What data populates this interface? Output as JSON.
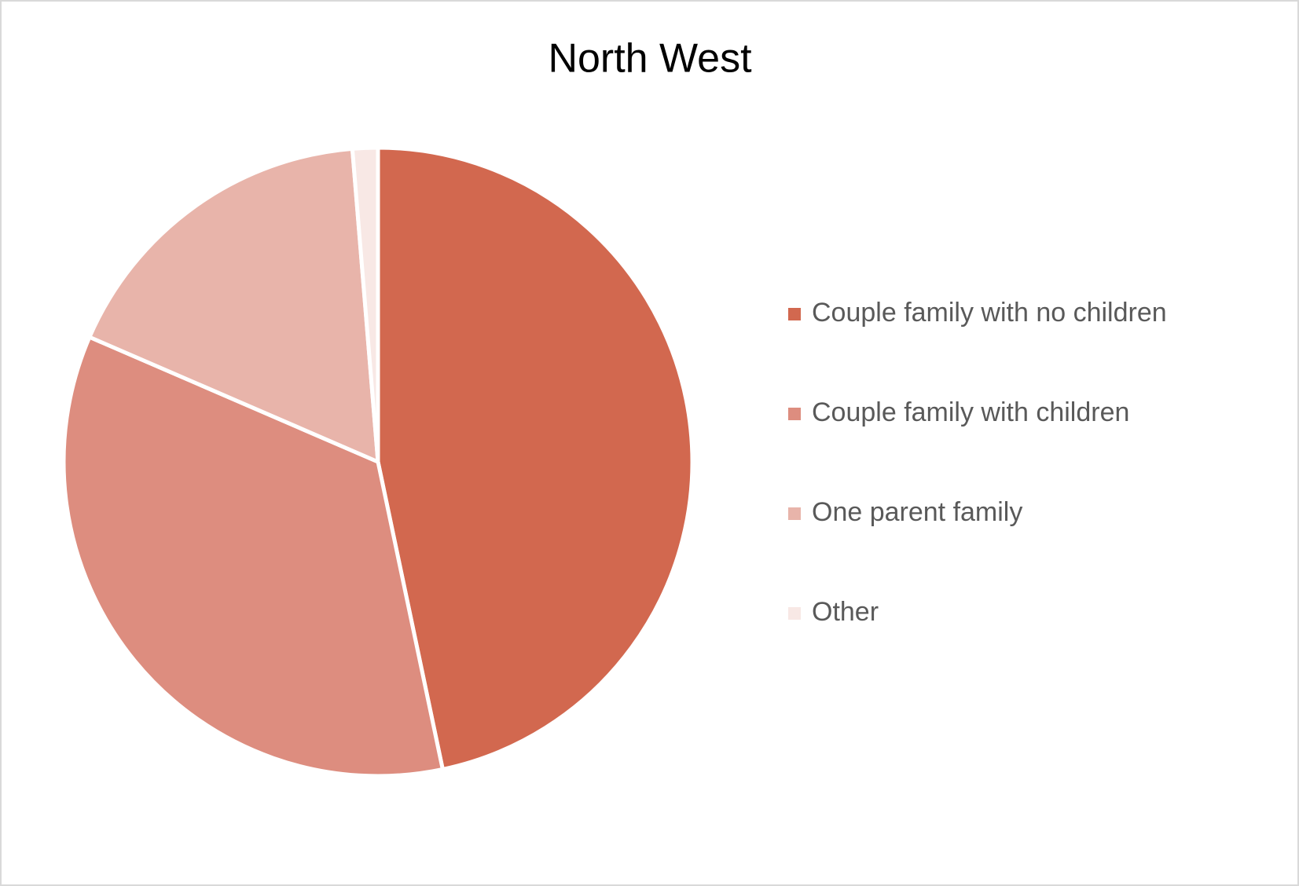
{
  "chart_data": {
    "type": "pie",
    "title": "North West",
    "categories": [
      "Couple family with no children",
      "Couple family with children",
      "One parent family",
      "Other"
    ],
    "values": [
      46.7,
      34.8,
      17.2,
      1.3
    ],
    "colors": [
      "#d2684f",
      "#dd8d7f",
      "#e8b4aa",
      "#f8e8e5"
    ],
    "legend": "right"
  }
}
